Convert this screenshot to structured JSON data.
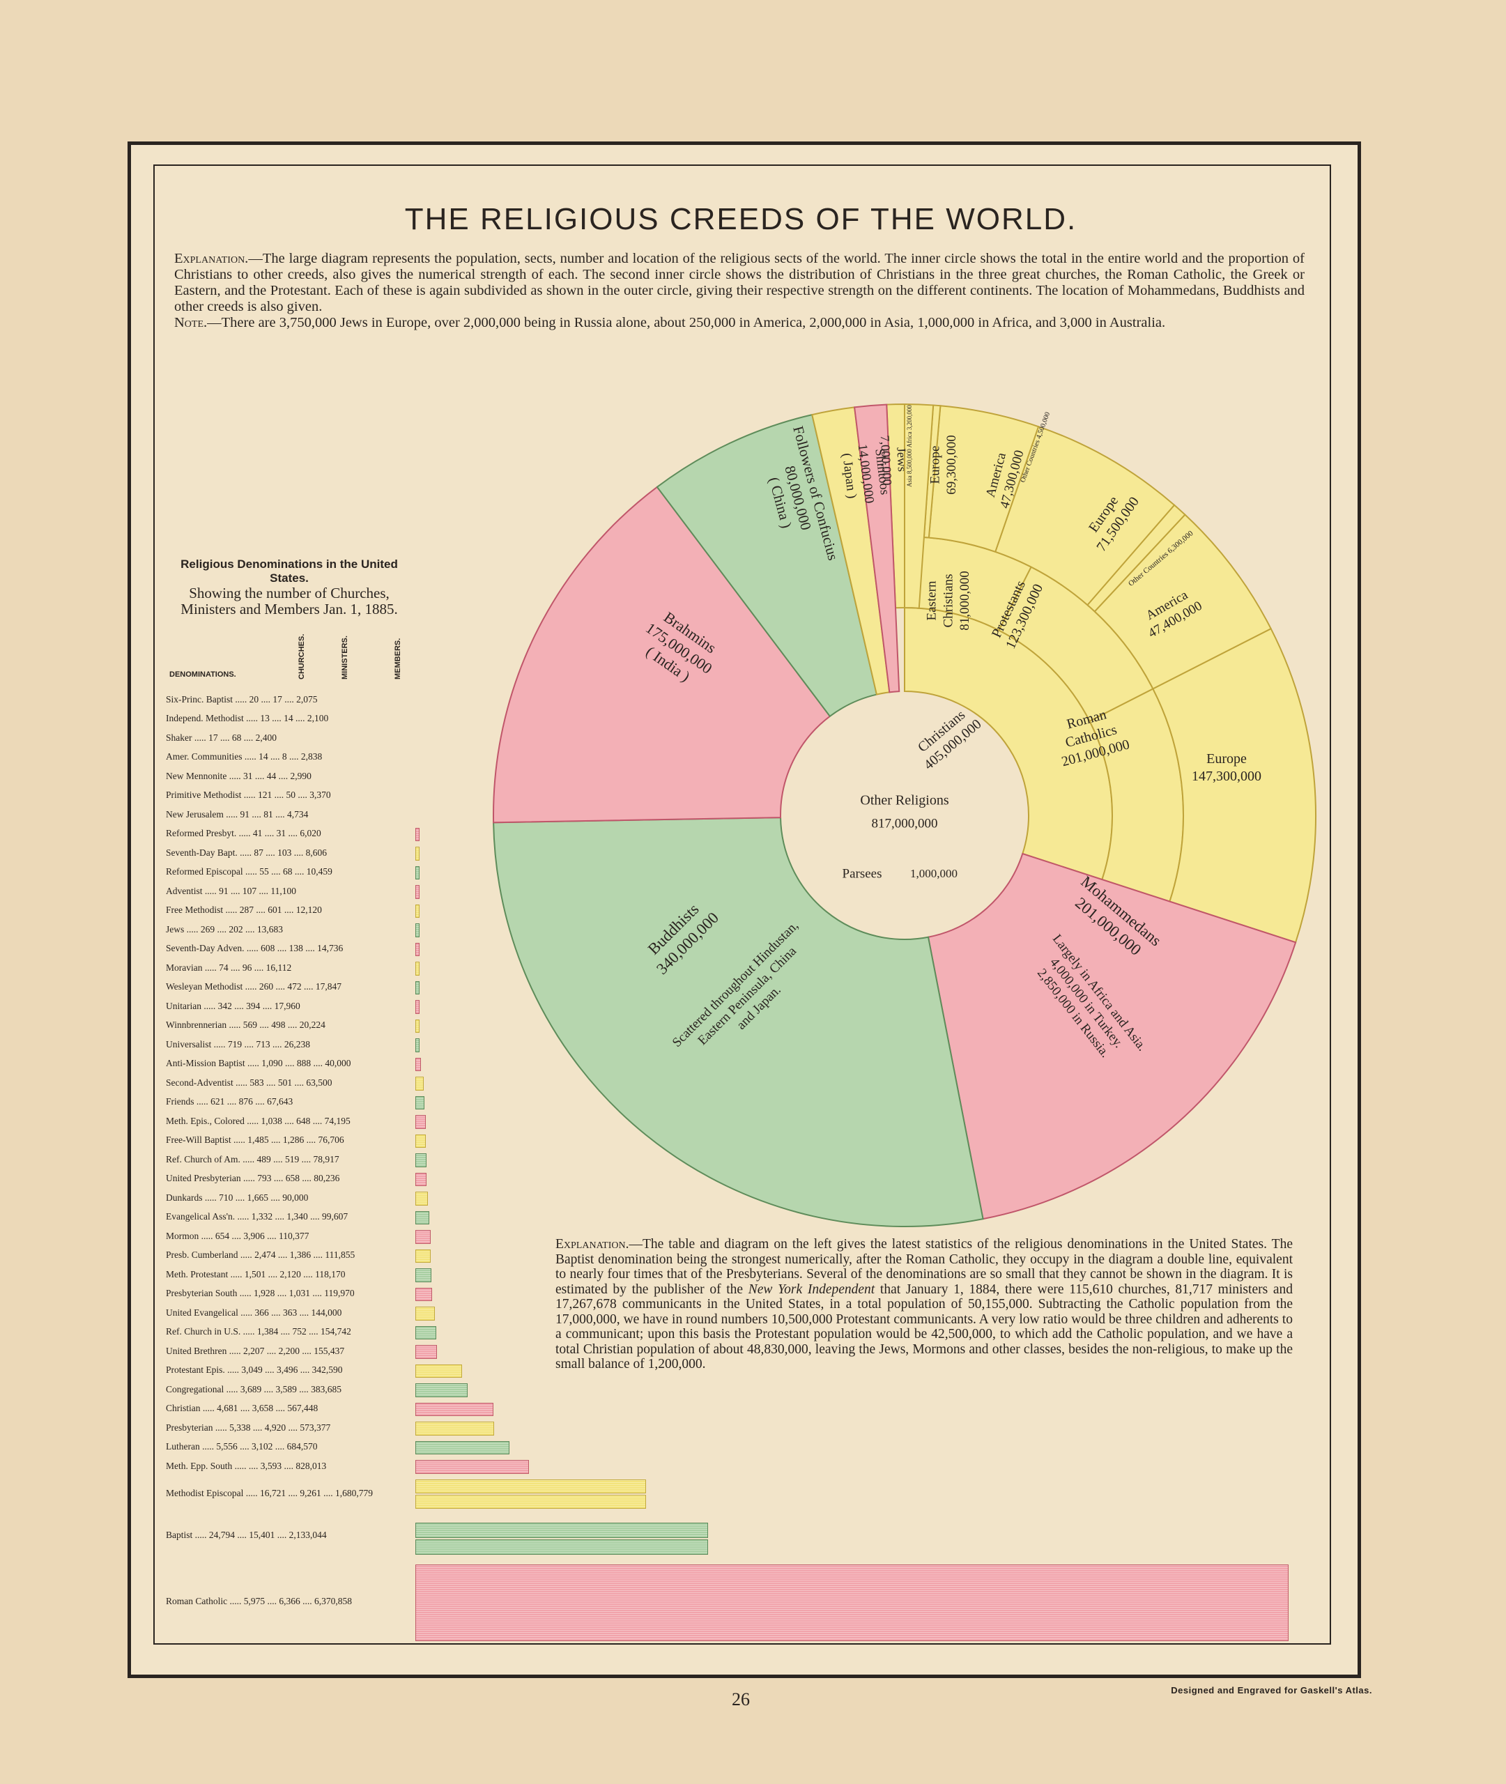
{
  "title": "THE RELIGIOUS CREEDS OF THE WORLD.",
  "explanation_top": {
    "lead": "Explanation.",
    "text": "—The large diagram represents the population, sects, number and location of the religious sects of the world. The inner circle shows the total in the entire world and the proportion of Christians to other creeds, also gives the numerical strength of each. The second inner circle shows the distribution of Christians in the three great churches, the Roman Catholic, the Greek or Eastern, and the Protestant. Each of these is again subdivided as shown in the outer circle, giving their respective strength on the different continents. The location of Mohammedans, Buddhists and other creeds is also given.",
    "note_lead": "Note.",
    "note_text": "—There are 3,750,000 Jews in Europe, over 2,000,000 being in Russia alone, about 250,000 in America, 2,000,000 in Asia, 1,000,000 in Africa, and 3,000 in Australia."
  },
  "table": {
    "heading": "Religious Denominations in the United States.",
    "subheading": "Showing the number of Churches, Ministers and Members Jan. 1, 1885.",
    "col_denominations": "DENOMINATIONS.",
    "col_churches": "CHURCHES.",
    "col_ministers": "MINISTERS.",
    "col_members": "MEMBERS."
  },
  "explanation_bottom": {
    "lead": "Explanation.",
    "text1": "—The table and diagram on the left gives the latest statistics of the religious denominations in the United States. The Baptist denomination being the strongest numerically, after the Roman Catholic, they occupy in the diagram a double line, equivalent to nearly four times that of the Presbyterians. Several of the denominations are so small that they cannot be shown in the diagram. It is estimated by the publisher of the ",
    "italic": "New York Independent",
    "text2": " that January 1, 1884, there were 115,610 churches, 81,717 ministers and 17,267,678 communicants in the United States, in a total population of 50,155,000. Subtracting the Catholic population from the 17,000,000, we have in round numbers 10,500,000 Protestant communicants. A very low ratio would be three children and adherents to a communicant; upon this basis the Protestant population would be 42,500,000, to which add the Catholic population, and we have a total Christian population of about 48,830,000, leaving the Jews, Mormons and other classes, besides the non-religious, to make up the small balance of 1,200,000."
  },
  "footer": {
    "page_number": "26",
    "credit": "Designed and Engraved for Gaskell's Atlas."
  },
  "colors": {
    "pink": "#f1a3ab",
    "green": "#a9cfa3",
    "yellow": "#f3e37a",
    "paper": "#f2e4c9"
  },
  "chart_data": [
    {
      "type": "pie",
      "title": "",
      "center_labels": [
        "Other Religions",
        "817,000,000",
        "Parsees",
        "1,000,000"
      ],
      "inner_ring": [
        {
          "label": "Christians",
          "value_text": "405,000,000",
          "value": 405000000,
          "color": "yellow"
        }
      ],
      "middle_ring": [
        {
          "label": "Roman Catholics",
          "value_text": "201,000,000",
          "value": 201000000,
          "color": "yellow"
        },
        {
          "label": "Protestants",
          "value_text": "123,300,000",
          "value": 123300000,
          "color": "yellow"
        },
        {
          "label": "Eastern Christians",
          "value_text": "81,000,000",
          "value": 81000000,
          "color": "yellow"
        }
      ],
      "outer_ring": [
        {
          "label": "Europe",
          "value_text": "147,300,000",
          "value": 147300000,
          "color": "yellow"
        },
        {
          "label": "America",
          "value_text": "47,400,000",
          "value": 47400000,
          "color": "yellow"
        },
        {
          "label": "Other Countries",
          "value_text": "6,300,000",
          "value": 6300000,
          "color": "yellow"
        },
        {
          "label": "Europe",
          "value_text": "71,500,000",
          "value": 71500000,
          "color": "yellow"
        },
        {
          "label": "America",
          "value_text": "47,300,000",
          "value": 47300000,
          "color": "yellow"
        },
        {
          "label": "Other Countries",
          "value_text": "4,500,000",
          "value": 4500000,
          "color": "yellow"
        },
        {
          "label": "Europe",
          "value_text": "69,300,000",
          "value": 69300000,
          "color": "yellow"
        },
        {
          "label": "Asia",
          "value_text": "8,500,000",
          "value": 8500000,
          "color": "yellow"
        },
        {
          "label": "Africa",
          "value_text": "3,200,000",
          "value": 3200000,
          "color": "yellow"
        }
      ],
      "other_creeds": [
        {
          "label": "Jews",
          "value_text": "7,000,000",
          "value": 7000000,
          "color": "pink"
        },
        {
          "label": "Shintoos",
          "value_text": "14,000,000",
          "note": "( Japan )",
          "value": 14000000,
          "color": "yellow"
        },
        {
          "label": "Followers of Confucius",
          "value_text": "80,000,000",
          "note": "( China )",
          "value": 80000000,
          "color": "green"
        },
        {
          "label": "Brahmins",
          "value_text": "175,000,000",
          "note": "( India )",
          "value": 175000000,
          "color": "pink"
        },
        {
          "label": "Buddhists",
          "value_text": "340,000,000",
          "note": "Scattered throughout Hindustan, Eastern Peninsula, China and Japan.",
          "value": 340000000,
          "color": "green"
        },
        {
          "label": "Mohammedans",
          "value_text": "201,000,000",
          "note": "Largely in Africa and Asia. 4,000,000 in Turkey. 2,850,000 in Russia.",
          "value": 201000000,
          "color": "pink"
        }
      ]
    },
    {
      "type": "bar",
      "title": "Religious Denominations in the United States.",
      "xlabel": "",
      "ylabel": "",
      "rows": [
        {
          "name": "Six-Princ. Baptist",
          "churches": "20",
          "ministers": "17",
          "members": "2,075",
          "value": 2075,
          "color": "pink"
        },
        {
          "name": "Independ. Methodist",
          "churches": "13",
          "ministers": "14",
          "members": "2,100",
          "value": 2100,
          "color": "pink"
        },
        {
          "name": "Shaker",
          "churches": "17",
          "ministers": "68",
          "members": "2,400",
          "value": 2400,
          "color": "pink"
        },
        {
          "name": "Amer. Communities",
          "churches": "14",
          "ministers": "8",
          "members": "2,838",
          "value": 2838,
          "color": "pink"
        },
        {
          "name": "New Mennonite",
          "churches": "31",
          "ministers": "44",
          "members": "2,990",
          "value": 2990,
          "color": "pink"
        },
        {
          "name": "Primitive Methodist",
          "churches": "121",
          "ministers": "50",
          "members": "3,370",
          "value": 3370,
          "color": "pink"
        },
        {
          "name": "New Jerusalem",
          "churches": "91",
          "ministers": "81",
          "members": "4,734",
          "value": 4734,
          "color": "pink"
        },
        {
          "name": "Reformed Presbyt.",
          "churches": "41",
          "ministers": "31",
          "members": "6,020",
          "value": 6020,
          "color": "pink"
        },
        {
          "name": "Seventh-Day Bapt.",
          "churches": "87",
          "ministers": "103",
          "members": "8,606",
          "value": 8606,
          "color": "yellow"
        },
        {
          "name": "Reformed Episcopal",
          "churches": "55",
          "ministers": "68",
          "members": "10,459",
          "value": 10459,
          "color": "green"
        },
        {
          "name": "Adventist",
          "churches": "91",
          "ministers": "107",
          "members": "11,100",
          "value": 11100,
          "color": "pink"
        },
        {
          "name": "Free Methodist",
          "churches": "287",
          "ministers": "601",
          "members": "12,120",
          "value": 12120,
          "color": "yellow"
        },
        {
          "name": "Jews",
          "churches": "269",
          "ministers": "202",
          "members": "13,683",
          "value": 13683,
          "color": "green"
        },
        {
          "name": "Seventh-Day Adven.",
          "churches": "608",
          "ministers": "138",
          "members": "14,736",
          "value": 14736,
          "color": "pink"
        },
        {
          "name": "Moravian",
          "churches": "74",
          "ministers": "96",
          "members": "16,112",
          "value": 16112,
          "color": "yellow"
        },
        {
          "name": "Wesleyan Methodist",
          "churches": "260",
          "ministers": "472",
          "members": "17,847",
          "value": 17847,
          "color": "green"
        },
        {
          "name": "Unitarian",
          "churches": "342",
          "ministers": "394",
          "members": "17,960",
          "value": 17960,
          "color": "pink"
        },
        {
          "name": "Winnbrennerian",
          "churches": "569",
          "ministers": "498",
          "members": "20,224",
          "value": 20224,
          "color": "yellow"
        },
        {
          "name": "Universalist",
          "churches": "719",
          "ministers": "713",
          "members": "26,238",
          "value": 26238,
          "color": "green"
        },
        {
          "name": "Anti-Mission Baptist",
          "churches": "1,090",
          "ministers": "888",
          "members": "40,000",
          "value": 40000,
          "color": "pink"
        },
        {
          "name": "Second-Adventist",
          "churches": "583",
          "ministers": "501",
          "members": "63,500",
          "value": 63500,
          "color": "yellow"
        },
        {
          "name": "Friends",
          "churches": "621",
          "ministers": "876",
          "members": "67,643",
          "value": 67643,
          "color": "green"
        },
        {
          "name": "Meth. Epis., Colored",
          "churches": "1,038",
          "ministers": "648",
          "members": "74,195",
          "value": 74195,
          "color": "pink"
        },
        {
          "name": "Free-Will Baptist",
          "churches": "1,485",
          "ministers": "1,286",
          "members": "76,706",
          "value": 76706,
          "color": "yellow"
        },
        {
          "name": "Ref. Church of Am.",
          "churches": "489",
          "ministers": "519",
          "members": "78,917",
          "value": 78917,
          "color": "green"
        },
        {
          "name": "United Presbyterian",
          "churches": "793",
          "ministers": "658",
          "members": "80,236",
          "value": 80236,
          "color": "pink"
        },
        {
          "name": "Dunkards",
          "churches": "710",
          "ministers": "1,665",
          "members": "90,000",
          "value": 90000,
          "color": "yellow"
        },
        {
          "name": "Evangelical Ass'n.",
          "churches": "1,332",
          "ministers": "1,340",
          "members": "99,607",
          "value": 99607,
          "color": "green"
        },
        {
          "name": "Mormon",
          "churches": "654",
          "ministers": "3,906",
          "members": "110,377",
          "value": 110377,
          "color": "pink"
        },
        {
          "name": "Presb. Cumberland",
          "churches": "2,474",
          "ministers": "1,386",
          "members": "111,855",
          "value": 111855,
          "color": "yellow"
        },
        {
          "name": "Meth. Protestant",
          "churches": "1,501",
          "ministers": "2,120",
          "members": "118,170",
          "value": 118170,
          "color": "green"
        },
        {
          "name": "Presbyterian South",
          "churches": "1,928",
          "ministers": "1,031",
          "members": "119,970",
          "value": 119970,
          "color": "pink"
        },
        {
          "name": "United Evangelical",
          "churches": "366",
          "ministers": "363",
          "members": "144,000",
          "value": 144000,
          "color": "yellow"
        },
        {
          "name": "Ref. Church in U.S.",
          "churches": "1,384",
          "ministers": "752",
          "members": "154,742",
          "value": 154742,
          "color": "green"
        },
        {
          "name": "United Brethren",
          "churches": "2,207",
          "ministers": "2,200",
          "members": "155,437",
          "value": 155437,
          "color": "pink"
        },
        {
          "name": "Protestant Epis.",
          "churches": "3,049",
          "ministers": "3,496",
          "members": "342,590",
          "value": 342590,
          "color": "yellow"
        },
        {
          "name": "Congregational",
          "churches": "3,689",
          "ministers": "3,589",
          "members": "383,685",
          "value": 383685,
          "color": "green"
        },
        {
          "name": "Christian",
          "churches": "4,681",
          "ministers": "3,658",
          "members": "567,448",
          "value": 567448,
          "color": "pink"
        },
        {
          "name": "Presbyterian",
          "churches": "5,338",
          "ministers": "4,920",
          "members": "573,377",
          "value": 573377,
          "color": "yellow"
        },
        {
          "name": "Lutheran",
          "churches": "5,556",
          "ministers": "3,102",
          "members": "684,570",
          "value": 684570,
          "color": "green"
        },
        {
          "name": "Meth. Epp. South",
          "churches": "",
          "ministers": "3,593",
          "members": "828,013",
          "value": 828013,
          "color": "pink"
        },
        {
          "name": "Methodist Episcopal",
          "churches": "16,721",
          "ministers": "9,261",
          "members": "1,680,779",
          "value": 1680779,
          "color": "yellow"
        },
        {
          "name": "Baptist",
          "churches": "24,794",
          "ministers": "15,401",
          "members": "2,133,044",
          "value": 2133044,
          "color": "green"
        },
        {
          "name": "Roman Catholic",
          "churches": "5,975",
          "ministers": "6,366",
          "members": "6,370,858",
          "value": 6370858,
          "color": "pink"
        }
      ]
    }
  ]
}
